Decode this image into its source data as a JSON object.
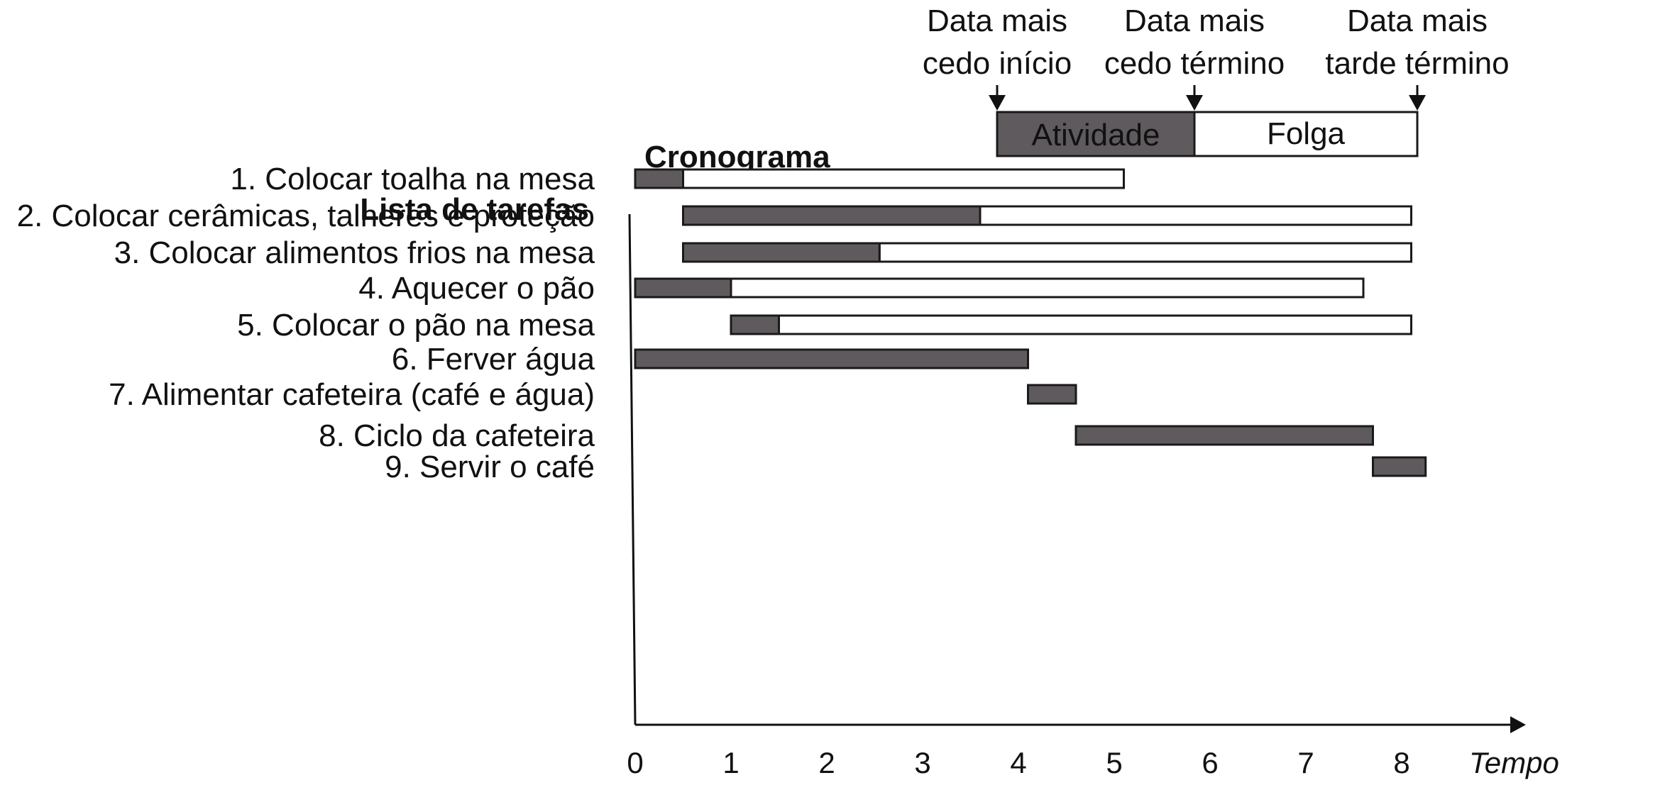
{
  "chart_data": {
    "type": "gantt",
    "title": "Cronograma",
    "task_list_heading": "Lista de tarefas",
    "xlabel": "Tempo",
    "xlim": [
      0,
      9
    ],
    "x_ticks": [
      "0",
      "1",
      "2",
      "3",
      "4",
      "5",
      "6",
      "7",
      "8"
    ],
    "legend": {
      "earliest_start": "Data mais cedo início",
      "earliest_start_lines": [
        "Data mais",
        "cedo início"
      ],
      "earliest_finish": "Data mais cedo término",
      "earliest_finish_lines": [
        "Data mais",
        "cedo término"
      ],
      "latest_finish": "Data mais tarde término",
      "latest_finish_lines": [
        "Data mais",
        "tarde término"
      ],
      "activity_label": "Atividade",
      "slack_label": "Folga"
    },
    "tasks": [
      {
        "label": "1. Colocar toalha na mesa",
        "start": 0,
        "end": 0.5,
        "latest_finish": 5.1
      },
      {
        "label": "2. Colocar cerâmicas, talheres e proteção",
        "start": 0.5,
        "end": 3.6,
        "latest_finish": 8.1
      },
      {
        "label": "3. Colocar alimentos frios na mesa",
        "start": 0.5,
        "end": 2.55,
        "latest_finish": 8.1
      },
      {
        "label": "4. Aquecer o pão",
        "start": 0,
        "end": 1.0,
        "latest_finish": 7.6
      },
      {
        "label": "5. Colocar o pão na mesa",
        "start": 1.0,
        "end": 1.5,
        "latest_finish": 8.1
      },
      {
        "label": "6. Ferver água",
        "start": 0,
        "end": 4.1,
        "latest_finish": null
      },
      {
        "label": "7. Alimentar cafeteira (café e água)",
        "start": 4.1,
        "end": 4.6,
        "latest_finish": null
      },
      {
        "label": "8. Ciclo da cafeteira",
        "start": 4.6,
        "end": 7.7,
        "latest_finish": null
      },
      {
        "label": "9. Servir o café",
        "start": 7.7,
        "end": 8.25,
        "latest_finish": null
      }
    ],
    "colors": {
      "activity": "#5f5a5d",
      "slack": "#ffffff",
      "outline": "#1a1a1a",
      "text": "#111111"
    }
  }
}
